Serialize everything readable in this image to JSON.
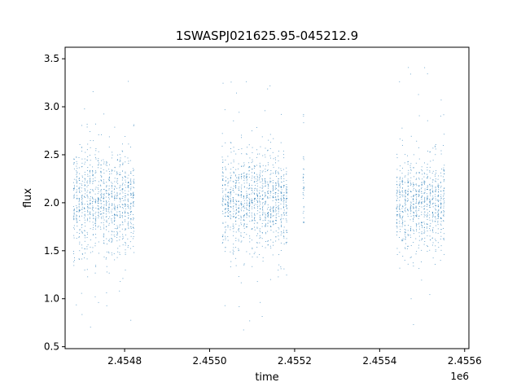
{
  "chart_data": {
    "type": "scatter",
    "title": "1SWASPJ021625.95-045212.9",
    "xlabel": "time",
    "ylabel": "flux",
    "x_offset_label": "1e6",
    "xlim": [
      2.45466,
      2.45561
    ],
    "ylim": [
      0.48,
      3.62
    ],
    "x_ticks": [
      2.4548,
      2.455,
      2.4552,
      2.4554,
      2.4556
    ],
    "x_tick_labels": [
      "2.4548",
      "2.4550",
      "2.4552",
      "2.4554",
      "2.4556"
    ],
    "y_ticks": [
      0.5,
      1.0,
      1.5,
      2.0,
      2.5,
      3.0,
      3.5
    ],
    "y_tick_labels": [
      "0.5",
      "1.0",
      "1.5",
      "2.0",
      "2.5",
      "3.0",
      "3.5"
    ],
    "grid": false,
    "point_color": "#1f77b4",
    "segments": [
      {
        "x_start": 2.45468,
        "x_end": 2.45482,
        "flux_center": 2.0,
        "flux_spread": 0.35,
        "flux_min": 0.66,
        "flux_max": 3.4
      },
      {
        "x_start": 2.45503,
        "x_end": 2.45518,
        "flux_center": 2.02,
        "flux_spread": 0.33,
        "flux_min": 0.63,
        "flux_max": 3.45
      },
      {
        "x_start": 2.45522,
        "x_end": 2.45522,
        "flux_center": 2.1,
        "flux_spread": 0.4,
        "flux_min": 1.8,
        "flux_max": 3.05
      },
      {
        "x_start": 2.45544,
        "x_end": 2.45555,
        "flux_center": 2.0,
        "flux_spread": 0.3,
        "flux_min": 0.62,
        "flux_max": 3.42
      }
    ]
  }
}
